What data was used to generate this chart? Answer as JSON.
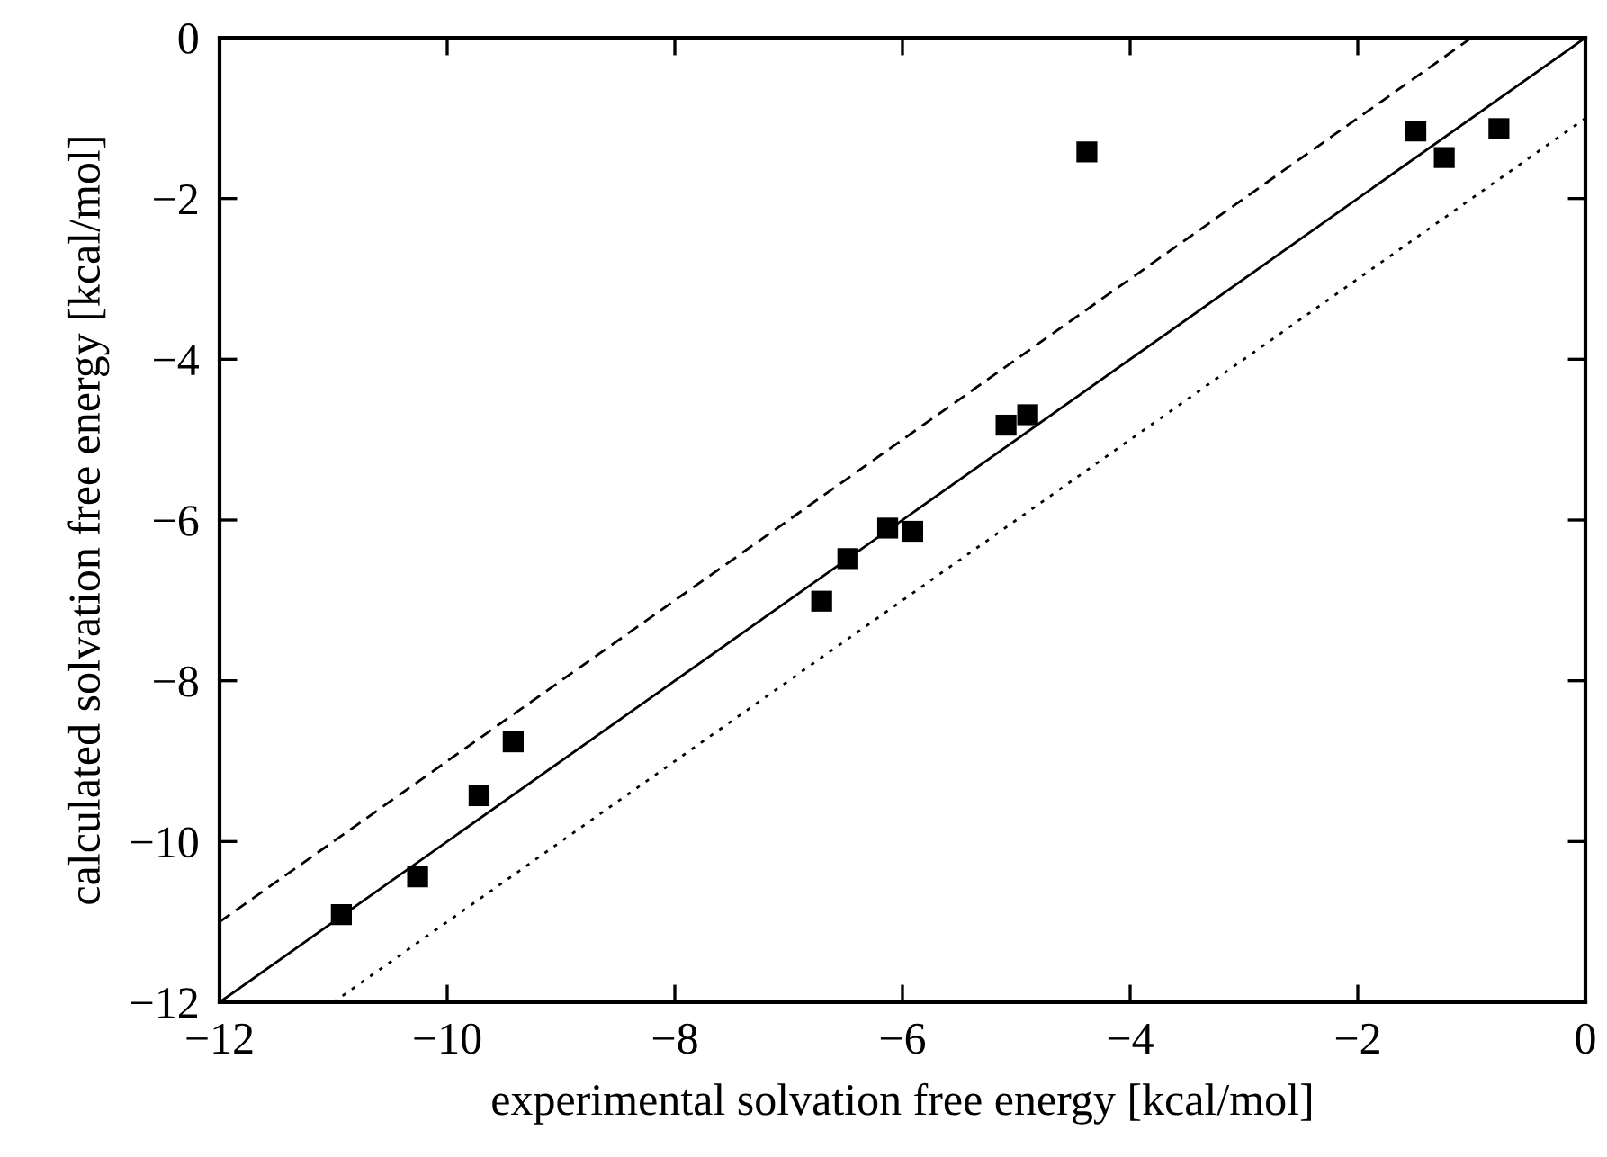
{
  "chart_data": {
    "type": "scatter",
    "xlabel": "experimental solvation free energy [kcal/mol]",
    "ylabel": "calculated solvation free energy [kcal/mol]",
    "xlim": [
      -12,
      0
    ],
    "ylim": [
      -12,
      0
    ],
    "xticks": [
      {
        "value": -12,
        "label": "−12"
      },
      {
        "value": -10,
        "label": "−10"
      },
      {
        "value": -8,
        "label": "−8"
      },
      {
        "value": -6,
        "label": "−6"
      },
      {
        "value": -4,
        "label": "−4"
      },
      {
        "value": -2,
        "label": "−2"
      },
      0
    ],
    "yticks": [
      {
        "value": -12,
        "label": "−12"
      },
      {
        "value": -10,
        "label": "−10"
      },
      {
        "value": -8,
        "label": "−8"
      },
      {
        "value": -6,
        "label": "−6"
      },
      {
        "value": -4,
        "label": "−4"
      },
      {
        "value": -2,
        "label": "−2"
      },
      0
    ],
    "grid": false,
    "series": [
      {
        "color": "#000000",
        "marker": "square",
        "x": [
          -10.93,
          -10.26,
          -9.72,
          -9.42,
          -6.71,
          -6.48,
          -6.13,
          -5.91,
          -5.09,
          -4.9,
          -4.38,
          -1.49,
          -1.24,
          -0.76
        ],
        "values": [
          -10.91,
          -10.44,
          -9.43,
          -8.76,
          -7.01,
          -6.48,
          -6.1,
          -6.14,
          -4.82,
          -4.69,
          -1.42,
          -1.16,
          -1.49,
          -1.13
        ]
      },
      {
        "type": "line",
        "color": "#000000",
        "line_style": "solid",
        "marker": "none",
        "x": [
          -12,
          0
        ],
        "values": [
          -12,
          0
        ]
      },
      {
        "type": "line",
        "color": "#000000",
        "line_style": "dashed",
        "marker": "none",
        "x": [
          -12,
          -1
        ],
        "values": [
          -11,
          0
        ]
      },
      {
        "type": "line",
        "color": "#000000",
        "line_style": "dotted",
        "marker": "none",
        "x": [
          -11,
          0
        ],
        "values": [
          -12,
          -1
        ]
      }
    ]
  }
}
